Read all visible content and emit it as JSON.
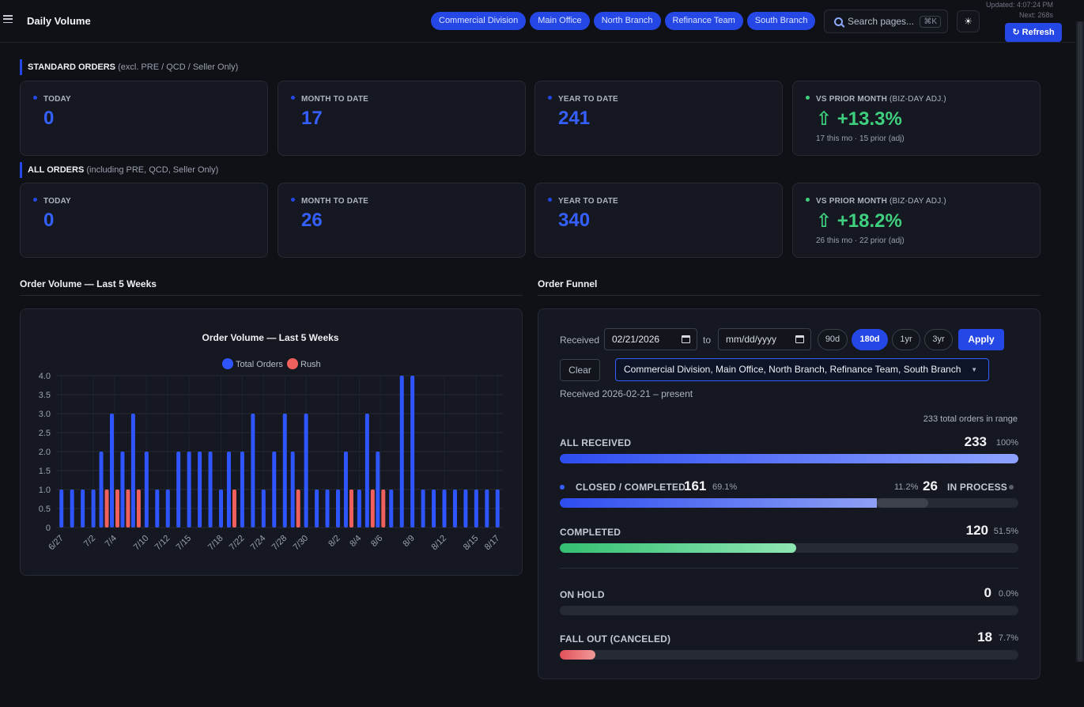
{
  "header": {
    "title": "Daily Volume",
    "branches": [
      "Commercial Division",
      "Main Office",
      "North Branch",
      "Refinance Team",
      "South Branch"
    ],
    "search_placeholder": "Search pages...",
    "search_shortcut": "⌘K",
    "theme_icon": "☀",
    "updated": "Updated: 4:07:24 PM",
    "next": "Next: 268s",
    "refresh_label": "↻ Refresh"
  },
  "standard": {
    "heading": "STANDARD ORDERS",
    "heading_note": "(excl. PRE / QCD / Seller Only)",
    "today_label": "TODAY",
    "today": "0",
    "mtd_label": "MONTH TO DATE",
    "mtd": "17",
    "ytd_label": "YEAR TO DATE",
    "ytd": "241",
    "vs_label": "VS PRIOR MONTH",
    "vs_sub": "(BIZ-DAY ADJ.)",
    "vs_value": "⇧ +13.3%",
    "vs_note": "17 this mo · 15 prior (adj)"
  },
  "all": {
    "heading": "ALL ORDERS",
    "heading_note": "(including PRE, QCD, Seller Only)",
    "today_label": "TODAY",
    "today": "0",
    "mtd_label": "MONTH TO DATE",
    "mtd": "26",
    "ytd_label": "YEAR TO DATE",
    "ytd": "340",
    "vs_label": "VS PRIOR MONTH",
    "vs_sub": "(BIZ-DAY ADJ.)",
    "vs_value": "⇧ +18.2%",
    "vs_note": "26 this mo · 22 prior (adj)"
  },
  "volume_panel": {
    "title": "Order Volume — Last 5 Weeks"
  },
  "chart_data": {
    "type": "bar",
    "title": "Order Volume — Last 5 Weeks",
    "xlabel": "",
    "ylabel": "",
    "ylim": [
      0,
      4
    ],
    "yticks": [
      "0",
      "0.5",
      "1.0",
      "1.5",
      "2.0",
      "2.5",
      "3.0",
      "3.5",
      "4.0"
    ],
    "grid": true,
    "legend": "top",
    "categories": [
      "6/27",
      "6/30",
      "7/1",
      "7/2",
      "7/3",
      "7/4",
      "7/8",
      "7/9",
      "7/10",
      "7/11",
      "7/12",
      "7/14",
      "7/15",
      "7/16",
      "7/17",
      "7/18",
      "7/21",
      "7/22",
      "7/23",
      "7/24",
      "7/25",
      "7/28",
      "7/29",
      "7/30",
      "7/31",
      "8/1",
      "8/2",
      "8/3",
      "8/4",
      "8/5",
      "8/6",
      "8/7",
      "8/8",
      "8/9",
      "8/10",
      "8/11",
      "8/12",
      "8/13",
      "8/14",
      "8/15",
      "8/16",
      "8/17"
    ],
    "tick_labels": [
      "6/27",
      "7/2",
      "7/4",
      "7/10",
      "7/12",
      "7/15",
      "7/18",
      "7/22",
      "7/24",
      "7/28",
      "7/30",
      "8/2",
      "8/4",
      "8/6",
      "8/9",
      "8/12",
      "8/15",
      "8/17"
    ],
    "series": [
      {
        "name": "Total Orders",
        "color": "#2f55ff",
        "values": [
          1,
          1,
          1,
          1,
          2,
          3,
          2,
          3,
          2,
          1,
          1,
          2,
          2,
          2,
          2,
          1,
          2,
          2,
          3,
          1,
          2,
          3,
          2,
          3,
          1,
          1,
          1,
          2,
          1,
          3,
          2,
          1,
          4,
          4,
          1,
          1,
          1,
          1,
          1,
          1,
          1,
          1
        ]
      },
      {
        "name": "Rush",
        "color": "#f0605d",
        "values": [
          0,
          0,
          0,
          0,
          1,
          1,
          1,
          1,
          0,
          0,
          0,
          0,
          0,
          0,
          0,
          0,
          1,
          0,
          0,
          0,
          0,
          0,
          1,
          0,
          0,
          0,
          0,
          1,
          0,
          1,
          1,
          0,
          0,
          0,
          0,
          0,
          0,
          0,
          0,
          0,
          0,
          0
        ]
      }
    ]
  },
  "funnel": {
    "title": "Order Funnel",
    "received_label": "Received",
    "from_date": "02/21/2026",
    "to_label": "to",
    "to_placeholder": "mm/dd/yyyy",
    "ranges": [
      "90d",
      "180d",
      "1yr",
      "3yr"
    ],
    "active_range": "180d",
    "apply_label": "Apply",
    "clear_label": "Clear",
    "branch_select": "Commercial Division, Main Office, North Branch, Refinance Team, South Branch",
    "range_note": "Received 2026-02-21 – present",
    "total_note": "233 total orders in range",
    "rows": {
      "received": {
        "label": "ALL RECEIVED",
        "value": "233",
        "pct": "100%",
        "fraction": 1.0
      },
      "closed": {
        "label": "CLOSED / COMPLETED",
        "value": "161",
        "pct": "69.1%",
        "fraction": 0.691
      },
      "in_process": {
        "label": "IN PROCESS",
        "value": "26",
        "pct": "11.2%",
        "fraction": 0.112
      },
      "completed": {
        "label": "COMPLETED",
        "value": "120",
        "pct": "51.5%",
        "fraction": 0.515
      },
      "on_hold": {
        "label": "ON HOLD",
        "value": "0",
        "pct": "0.0%",
        "fraction": 0.0
      },
      "fall_out": {
        "label": "FALL OUT (CANCELED)",
        "value": "18",
        "pct": "7.7%",
        "fraction": 0.077
      }
    }
  }
}
